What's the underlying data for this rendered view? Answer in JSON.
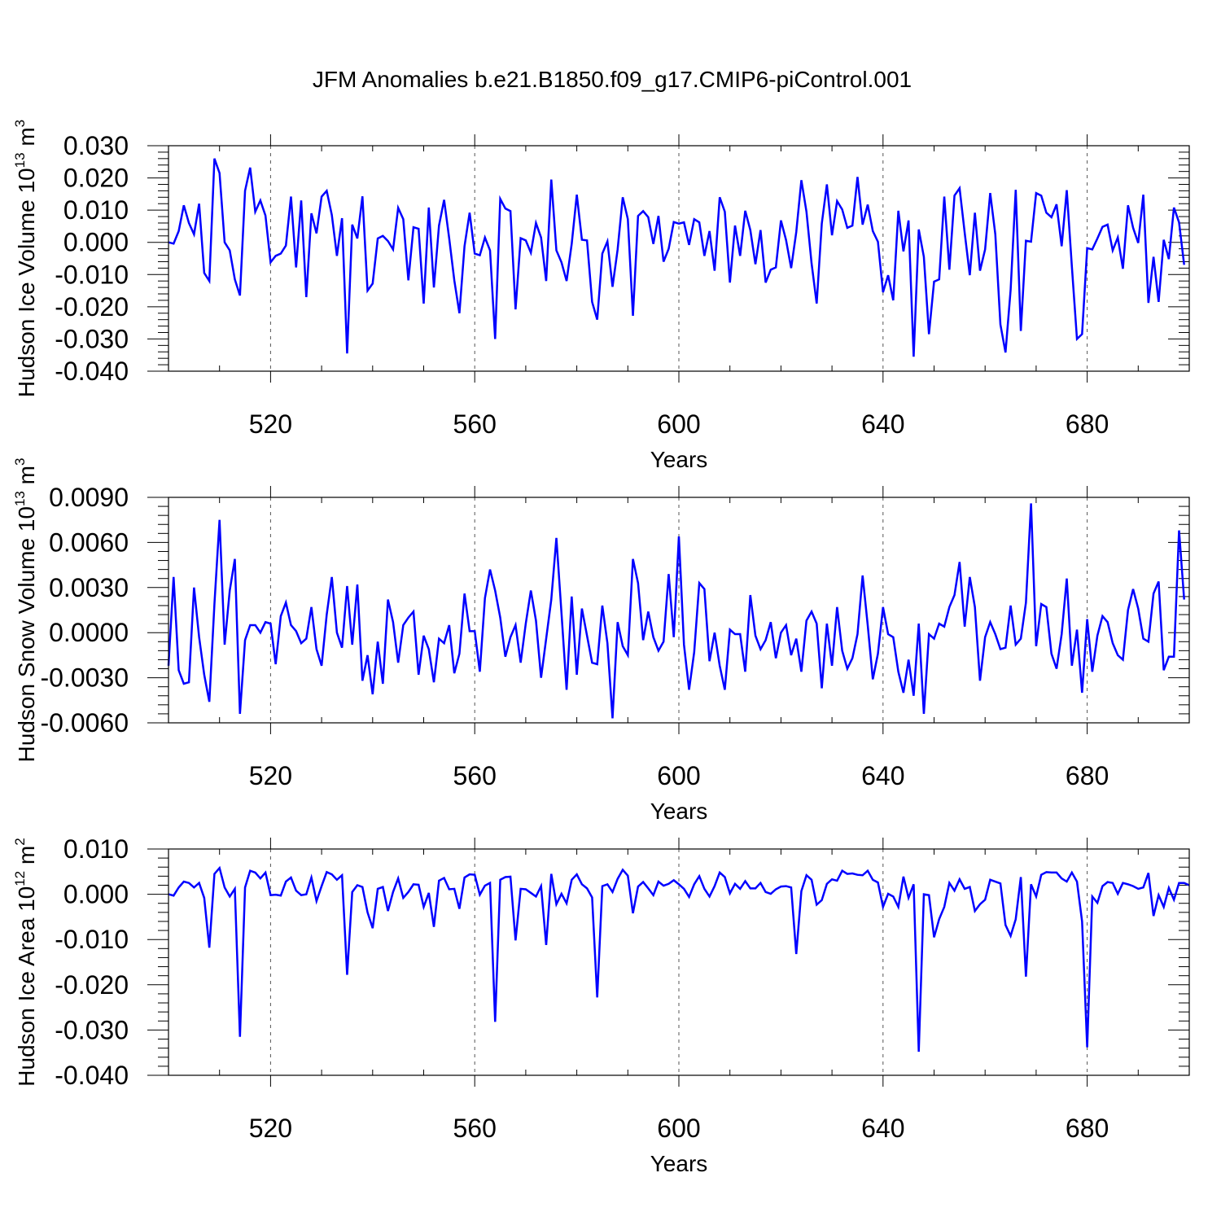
{
  "figure_title": "JFM Anomalies b.e21.B1850.f09_g17.CMIP6-piControl.001",
  "chart_data": [
    {
      "type": "line",
      "title": "",
      "xlabel": "Years",
      "ylabel": {
        "prefix": "Hudson Ice Volume 10",
        "exponent": "13",
        "mid": " m",
        "unit_exponent": "3"
      },
      "x_start": 500,
      "x_step": 1,
      "xlim": [
        500,
        700
      ],
      "ylim": [
        -0.04,
        0.03
      ],
      "x_ticks": [
        520,
        560,
        600,
        640,
        680
      ],
      "x_tick_labels": [
        "520",
        "560",
        "600",
        "640",
        "680"
      ],
      "y_ticks": [
        -0.04,
        -0.03,
        -0.02,
        -0.01,
        0.0,
        0.01,
        0.02,
        0.03
      ],
      "y_tick_labels": [
        "-0.040",
        "-0.030",
        "-0.020",
        "-0.010",
        "0.000",
        "0.010",
        "0.020",
        "0.030"
      ],
      "y_minor_step": 0.002,
      "x_minor_step": 10,
      "grid": "dashed vertical at major x ticks",
      "series": [
        {
          "color": "#0000ff",
          "values": [
            0.0,
            -0.0004,
            0.0035,
            0.0115,
            0.006,
            0.0025,
            0.012,
            -0.0095,
            -0.012,
            0.026,
            0.0215,
            0.0,
            -0.0025,
            -0.0115,
            -0.0165,
            0.016,
            0.0232,
            0.0095,
            0.013,
            0.0083,
            -0.0062,
            -0.0042,
            -0.0035,
            -0.001,
            0.0142,
            -0.0078,
            0.013,
            -0.017,
            0.009,
            0.0028,
            0.0142,
            0.016,
            0.0085,
            -0.0042,
            0.0075,
            -0.0345,
            0.0055,
            0.0012,
            0.0143,
            -0.015,
            -0.0128,
            0.0012,
            0.002,
            0.0004,
            -0.0022,
            0.0107,
            0.0072,
            -0.0118,
            0.0047,
            0.0042,
            -0.019,
            0.0108,
            -0.014,
            0.0052,
            0.0132,
            0.0012,
            -0.0118,
            -0.022,
            -0.0012,
            0.0092,
            -0.0035,
            -0.004,
            0.0015,
            -0.0025,
            -0.03,
            0.0135,
            0.0105,
            0.0097,
            -0.0208,
            0.0013,
            0.0006,
            -0.0032,
            0.006,
            0.0015,
            -0.012,
            0.0195,
            -0.0025,
            -0.0062,
            -0.012,
            -0.0005,
            0.0148,
            0.0008,
            0.0006,
            -0.0185,
            -0.024,
            -0.0035,
            0.0003,
            -0.0138,
            -0.0022,
            0.014,
            0.0072,
            -0.0228,
            0.0082,
            0.0097,
            0.0078,
            -0.0005,
            0.0082,
            -0.006,
            -0.002,
            0.0063,
            0.0058,
            0.0062,
            -0.0008,
            0.0072,
            0.0062,
            -0.0042,
            0.0035,
            -0.0088,
            0.014,
            0.0095,
            -0.0125,
            0.0052,
            -0.0042,
            0.0098,
            0.0038,
            -0.0068,
            0.0038,
            -0.0125,
            -0.0085,
            -0.0078,
            0.0068,
            0.0007,
            -0.008,
            0.0032,
            0.0193,
            0.0095,
            -0.0065,
            -0.019,
            0.0058,
            0.018,
            0.0022,
            0.0128,
            0.0102,
            0.0045,
            0.0052,
            0.0203,
            0.0055,
            0.0117,
            0.0035,
            0.0002,
            -0.0155,
            -0.0102,
            -0.018,
            0.0098,
            -0.0028,
            0.0068,
            -0.0355,
            0.004,
            -0.0045,
            -0.0285,
            -0.0122,
            -0.0115,
            0.0142,
            -0.0085,
            0.0145,
            0.0168,
            0.003,
            -0.0102,
            0.0092,
            -0.0088,
            -0.0022,
            0.0153,
            0.0025,
            -0.0255,
            -0.0342,
            -0.0148,
            0.0163,
            -0.0275,
            0.0005,
            0.0002,
            0.0153,
            0.0145,
            0.0092,
            0.0078,
            0.0118,
            -0.0012,
            0.0162,
            -0.0075,
            -0.03,
            -0.0285,
            -0.0018,
            -0.0022,
            0.0012,
            0.0048,
            0.0055,
            -0.0025,
            0.0015,
            -0.0082,
            0.0115,
            0.0045,
            -0.0002,
            0.0148,
            -0.0188,
            -0.0045,
            -0.0185,
            0.0008,
            -0.0052,
            0.0108,
            0.0062,
            -0.007
          ]
        }
      ]
    },
    {
      "type": "line",
      "title": "",
      "xlabel": "Years",
      "ylabel": {
        "prefix": "Hudson Snow Volume 10",
        "exponent": "13",
        "mid": " m",
        "unit_exponent": "3"
      },
      "x_start": 500,
      "x_step": 1,
      "xlim": [
        500,
        700
      ],
      "ylim": [
        -0.006,
        0.009
      ],
      "x_ticks": [
        520,
        560,
        600,
        640,
        680
      ],
      "x_tick_labels": [
        "520",
        "560",
        "600",
        "640",
        "680"
      ],
      "y_ticks": [
        -0.006,
        -0.003,
        0.0,
        0.003,
        0.006,
        0.009
      ],
      "y_tick_labels": [
        "-0.0060",
        "-0.0030",
        "0.0000",
        "0.0030",
        "0.0060",
        "0.0090"
      ],
      "y_minor_step": 0.0006,
      "x_minor_step": 10,
      "grid": "dashed vertical at major x ticks",
      "series": [
        {
          "color": "#0000ff",
          "values": [
            -0.0022,
            0.0037,
            -0.0025,
            -0.0034,
            -0.0033,
            0.003,
            -0.0003,
            -0.0028,
            -0.0046,
            0.0019,
            0.0075,
            -0.0008,
            0.0028,
            0.0049,
            -0.0054,
            -0.0005,
            0.0005,
            0.0005,
            0.0,
            0.0007,
            0.0006,
            -0.0021,
            0.0011,
            0.002,
            0.0005,
            0.0001,
            -0.0007,
            -0.0004,
            0.0017,
            -0.0011,
            -0.0022,
            0.0012,
            0.0037,
            0.0,
            -0.001,
            0.0031,
            -0.0008,
            0.0032,
            -0.0032,
            -0.0015,
            -0.0041,
            -0.0006,
            -0.0034,
            0.0022,
            0.0007,
            -0.002,
            0.0005,
            0.001,
            0.0014,
            -0.0028,
            -0.0002,
            -0.0011,
            -0.0033,
            -0.0004,
            -0.0007,
            0.0005,
            -0.0027,
            -0.0014,
            0.0026,
            0.0001,
            0.0001,
            -0.0026,
            0.0023,
            0.0042,
            0.0028,
            0.001,
            -0.0016,
            -0.0003,
            0.0005,
            -0.002,
            0.0006,
            0.0028,
            0.0008,
            -0.003,
            -0.0004,
            0.0022,
            0.0063,
            0.0013,
            -0.0038,
            0.0024,
            -0.0028,
            0.0016,
            -0.0002,
            -0.002,
            -0.0021,
            0.0018,
            -0.0007,
            -0.0057,
            0.0007,
            -0.0009,
            -0.0015,
            0.0049,
            0.0033,
            -0.0005,
            0.0014,
            -0.0003,
            -0.0012,
            -0.0006,
            0.0039,
            -0.0003,
            0.0064,
            -0.0008,
            -0.0038,
            -0.0013,
            0.0033,
            0.0029,
            -0.0019,
            0.0,
            -0.0022,
            -0.0038,
            0.0002,
            -0.0001,
            -0.0001,
            -0.0026,
            0.0025,
            -0.0002,
            -0.0011,
            -0.0005,
            0.0007,
            -0.0017,
            0.0,
            0.0005,
            -0.0015,
            -0.0004,
            -0.0026,
            0.0008,
            0.0014,
            0.0006,
            -0.0037,
            0.0006,
            -0.0022,
            0.0017,
            -0.0012,
            -0.0024,
            -0.0017,
            -0.0001,
            0.0038,
            0.0005,
            -0.0031,
            -0.0014,
            0.0017,
            -0.0001,
            -0.0003,
            -0.0026,
            -0.004,
            -0.0018,
            -0.0042,
            0.0006,
            -0.0054,
            -0.0001,
            -0.0004,
            0.0006,
            0.0004,
            0.0017,
            0.0025,
            0.0047,
            0.0004,
            0.0037,
            0.0017,
            -0.0032,
            -0.0003,
            0.0007,
            -0.0001,
            -0.0011,
            -0.001,
            0.0018,
            -0.0008,
            -0.0004,
            0.002,
            0.0086,
            -0.0009,
            0.0019,
            0.0017,
            -0.0014,
            -0.0024,
            -0.0001,
            0.0036,
            -0.0022,
            0.0002,
            -0.004,
            0.0009,
            -0.0026,
            -0.0002,
            0.0011,
            0.0007,
            -0.0007,
            -0.0015,
            -0.0018,
            0.0015,
            0.0029,
            0.0016,
            -0.0004,
            -0.0006,
            0.0026,
            0.0034,
            -0.0025,
            -0.0016,
            -0.0016,
            0.0068,
            0.0022
          ]
        }
      ]
    },
    {
      "type": "line",
      "title": "",
      "xlabel": "Years",
      "ylabel": {
        "prefix": "Hudson Ice Area 10",
        "exponent": "12",
        "mid": " m",
        "unit_exponent": "2"
      },
      "x_start": 500,
      "x_step": 1,
      "xlim": [
        500,
        700
      ],
      "ylim": [
        -0.04,
        0.01
      ],
      "x_ticks": [
        520,
        560,
        600,
        640,
        680
      ],
      "x_tick_labels": [
        "520",
        "560",
        "600",
        "640",
        "680"
      ],
      "y_ticks": [
        -0.04,
        -0.03,
        -0.02,
        -0.01,
        0.0,
        0.01
      ],
      "y_tick_labels": [
        "-0.040",
        "-0.030",
        "-0.020",
        "-0.010",
        "0.000",
        "0.010"
      ],
      "y_minor_step": 0.002,
      "x_minor_step": 10,
      "grid": "dashed vertical at major x ticks",
      "series": [
        {
          "color": "#0000ff",
          "values": [
            0.0,
            -0.0003,
            0.0015,
            0.0028,
            0.0025,
            0.0015,
            0.0025,
            -0.0008,
            -0.0118,
            0.0045,
            0.0058,
            0.0015,
            -0.0005,
            0.0012,
            -0.0315,
            0.0015,
            0.0052,
            0.0048,
            0.0035,
            0.0048,
            -0.0002,
            -0.0001,
            -0.0003,
            0.0028,
            0.0037,
            0.0008,
            -0.0002,
            0.0,
            0.0037,
            -0.0015,
            0.0018,
            0.0049,
            0.0044,
            0.0032,
            0.0042,
            -0.0178,
            0.0005,
            0.002,
            0.0016,
            -0.004,
            -0.0075,
            0.0012,
            0.0016,
            -0.0037,
            0.0005,
            0.0035,
            -0.0008,
            0.0005,
            0.0022,
            0.0021,
            -0.0028,
            0.0003,
            -0.0072,
            0.003,
            0.0036,
            0.0011,
            0.0012,
            -0.0032,
            0.0037,
            0.0044,
            0.0043,
            -0.0001,
            0.0019,
            0.0025,
            -0.0282,
            0.0032,
            0.0038,
            0.0039,
            -0.0102,
            0.0012,
            0.0011,
            0.0003,
            -0.0005,
            0.0018,
            -0.0112,
            0.0045,
            -0.0022,
            0.0001,
            -0.002,
            0.0032,
            0.0044,
            0.0022,
            0.0013,
            -0.0007,
            -0.0228,
            0.0018,
            0.0022,
            0.0005,
            0.0034,
            0.0054,
            0.0041,
            -0.0042,
            0.0017,
            0.0027,
            0.0013,
            -0.0002,
            0.0028,
            0.0019,
            0.0023,
            0.0031,
            0.0022,
            0.0012,
            -0.0006,
            0.0022,
            0.004,
            0.0012,
            -0.0005,
            0.0018,
            0.0048,
            0.0038,
            0.0002,
            0.0023,
            0.0012,
            0.0029,
            0.0013,
            0.0013,
            0.0025,
            0.0005,
            0.0001,
            0.0011,
            0.0017,
            0.0018,
            0.0015,
            -0.0132,
            0.0007,
            0.0042,
            0.0032,
            -0.0023,
            -0.0013,
            0.0023,
            0.0033,
            0.003,
            0.0052,
            0.0045,
            0.0046,
            0.0043,
            0.0042,
            0.0052,
            0.0032,
            0.0026,
            -0.0028,
            0.0001,
            -0.0005,
            -0.0028,
            0.0039,
            -0.0008,
            0.0022,
            -0.0348,
            0.0,
            -0.0002,
            -0.0095,
            -0.0055,
            -0.0028,
            0.0025,
            0.0008,
            0.0033,
            0.0012,
            0.0016,
            -0.0037,
            -0.0022,
            -0.0012,
            0.0032,
            0.0028,
            0.0024,
            -0.0068,
            -0.0092,
            -0.0055,
            0.0038,
            -0.0182,
            0.0022,
            -0.0005,
            0.0043,
            0.0049,
            0.0048,
            0.0048,
            0.0035,
            0.0028,
            0.0048,
            0.0028,
            -0.006,
            -0.0338,
            -0.0005,
            -0.0019,
            0.0018,
            0.0027,
            0.0025,
            0.0001,
            0.0025,
            0.0022,
            0.0018,
            0.0012,
            0.0015,
            0.0047,
            -0.0048,
            -0.0002,
            -0.0028,
            0.0014,
            -0.0012,
            0.0025,
            0.0025,
            0.002
          ]
        }
      ]
    }
  ]
}
